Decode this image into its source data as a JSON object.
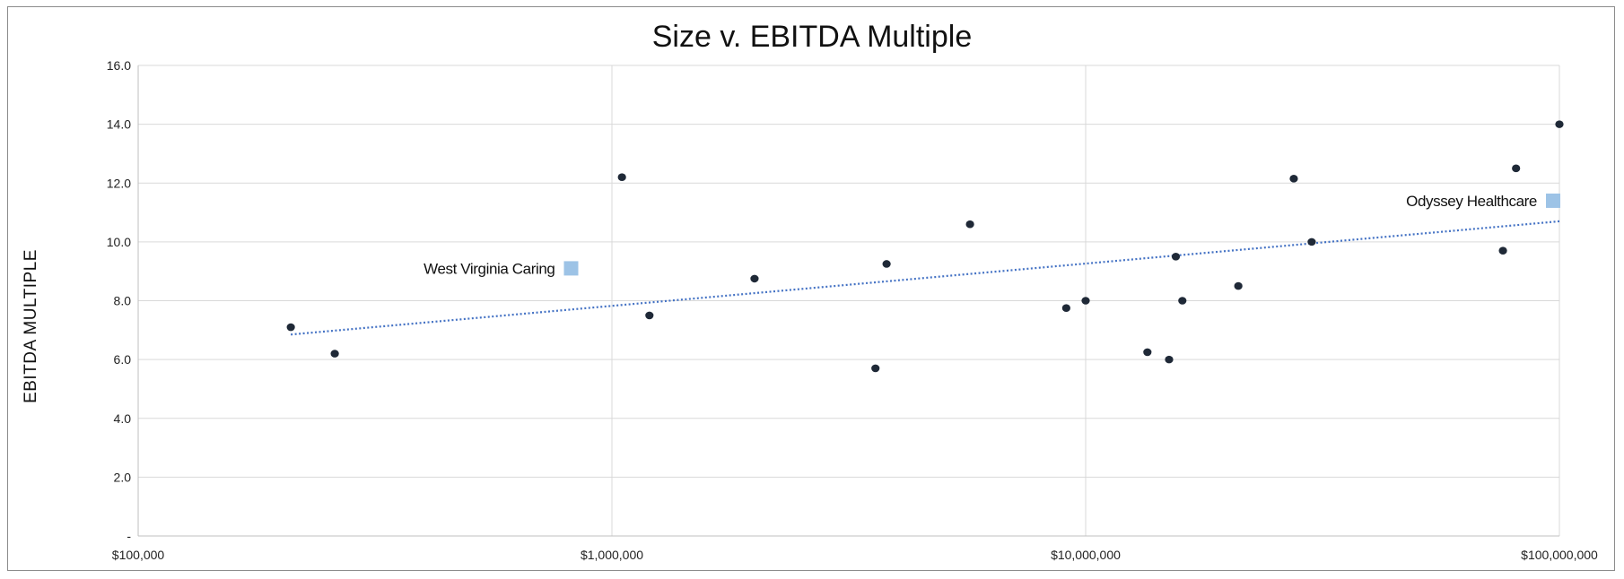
{
  "chart_data": {
    "type": "scatter",
    "title": "Size v. EBITDA Multiple",
    "xlabel": "",
    "ylabel": "EBITDA MULTIPLE",
    "x_scale": "log",
    "xlim": [
      100000,
      100000000
    ],
    "ylim": [
      0,
      16
    ],
    "x_ticks": [
      100000,
      1000000,
      10000000,
      100000000
    ],
    "x_tick_labels": [
      "$100,000",
      "$1,000,000",
      "$10,000,000",
      "$100,000,000"
    ],
    "y_ticks": [
      0,
      2,
      4,
      6,
      8,
      10,
      12,
      14,
      16
    ],
    "y_tick_labels": [
      "-",
      "2.0",
      "4.0",
      "6.0",
      "8.0",
      "10.0",
      "12.0",
      "14.0",
      "16.0"
    ],
    "grid": true,
    "series": [
      {
        "color": "#1f2937",
        "points": [
          {
            "x": 210000,
            "y": 7.1
          },
          {
            "x": 260000,
            "y": 6.2
          },
          {
            "x": 1050000,
            "y": 12.2
          },
          {
            "x": 1200000,
            "y": 7.5
          },
          {
            "x": 2000000,
            "y": 8.75
          },
          {
            "x": 3600000,
            "y": 5.7
          },
          {
            "x": 3800000,
            "y": 9.25
          },
          {
            "x": 5700000,
            "y": 10.6
          },
          {
            "x": 9100000,
            "y": 7.75
          },
          {
            "x": 10000000,
            "y": 8.0
          },
          {
            "x": 13500000,
            "y": 6.25
          },
          {
            "x": 15000000,
            "y": 6.0
          },
          {
            "x": 15500000,
            "y": 9.5
          },
          {
            "x": 16000000,
            "y": 8.0
          },
          {
            "x": 21000000,
            "y": 8.5
          },
          {
            "x": 27500000,
            "y": 12.15
          },
          {
            "x": 30000000,
            "y": 10.0
          },
          {
            "x": 76000000,
            "y": 9.7
          },
          {
            "x": 81000000,
            "y": 12.5
          },
          {
            "x": 100000000,
            "y": 14.0
          }
        ]
      }
    ],
    "trendline": {
      "style": "dotted",
      "color": "#4472c4",
      "start": {
        "x": 210000,
        "y": 6.85
      },
      "end": {
        "x": 100000000,
        "y": 10.7
      }
    },
    "annotations": [
      {
        "text": "West Virginia Caring",
        "x": 820000,
        "y": 9.1,
        "marker_color": "#9dc3e6",
        "anchor": "left-of-marker"
      },
      {
        "text": "Odyssey Healthcare",
        "x": 97000000,
        "y": 11.4,
        "marker_color": "#9dc3e6",
        "anchor": "left-of-marker"
      }
    ]
  }
}
